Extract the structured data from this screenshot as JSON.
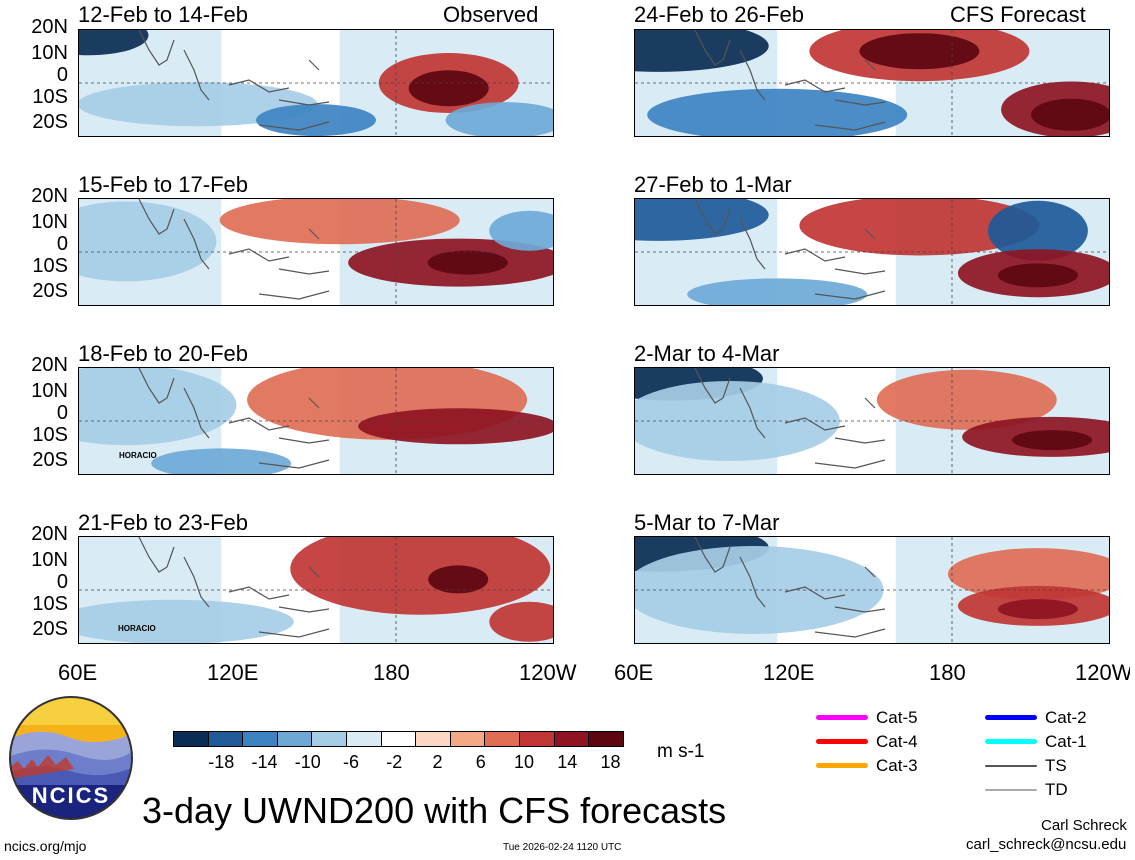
{
  "figure": {
    "title": "3-day UWND200 with CFS forecasts",
    "units": "m s-1",
    "left_column_label": "Observed",
    "right_column_label": "CFS Forecast",
    "website": "ncics.org/mjo",
    "timestamp": "Tue 2026-02-24 1120 UTC",
    "author": "Carl Schreck",
    "email": "carl_schreck@ncsu.edu",
    "logo_text": "NCICS"
  },
  "chart_data": {
    "type": "heatmap",
    "variable": "200-hPa zonal wind anomaly",
    "panels": [
      {
        "title": "12-Feb to 14-Feb",
        "source": "Observed"
      },
      {
        "title": "15-Feb to 17-Feb",
        "source": "Observed"
      },
      {
        "title": "18-Feb to 20-Feb",
        "source": "Observed",
        "storm": "HORACIO"
      },
      {
        "title": "21-Feb to 23-Feb",
        "source": "Observed",
        "storm": "HORACIO"
      },
      {
        "title": "24-Feb to 26-Feb",
        "source": "CFS Forecast"
      },
      {
        "title": "27-Feb to 1-Mar",
        "source": "CFS Forecast"
      },
      {
        "title": "2-Mar to 4-Mar",
        "source": "CFS Forecast"
      },
      {
        "title": "5-Mar to 7-Mar",
        "source": "CFS Forecast"
      }
    ],
    "y_ticks": [
      "20N",
      "10N",
      "0",
      "10S",
      "20S"
    ],
    "x_ticks_left": [
      "60E",
      "120E",
      "180",
      "120W"
    ],
    "x_ticks_right": [
      "60E",
      "120E",
      "180",
      "120W"
    ],
    "colorbar": {
      "labels": [
        "-18",
        "-14",
        "-10",
        "-6",
        "-2",
        "2",
        "6",
        "10",
        "14",
        "18"
      ],
      "colors": [
        "#0b2c54",
        "#1f5a99",
        "#3d83c2",
        "#6ea9d6",
        "#a6cde6",
        "#d9ebf5",
        "#ffffff",
        "#fbd7c4",
        "#f4a886",
        "#df6e55",
        "#c03634",
        "#8e1422",
        "#5c0611"
      ]
    },
    "legend": [
      {
        "label": "Cat-5",
        "color": "#ff00ff"
      },
      {
        "label": "Cat-4",
        "color": "#ff0000"
      },
      {
        "label": "Cat-3",
        "color": "#ffa500"
      },
      {
        "label": "Cat-2",
        "color": "#0000ff"
      },
      {
        "label": "Cat-1",
        "color": "#00ffff"
      },
      {
        "label": "TS",
        "color": "#555555"
      },
      {
        "label": "TD",
        "color": "#aaaaaa"
      }
    ]
  }
}
